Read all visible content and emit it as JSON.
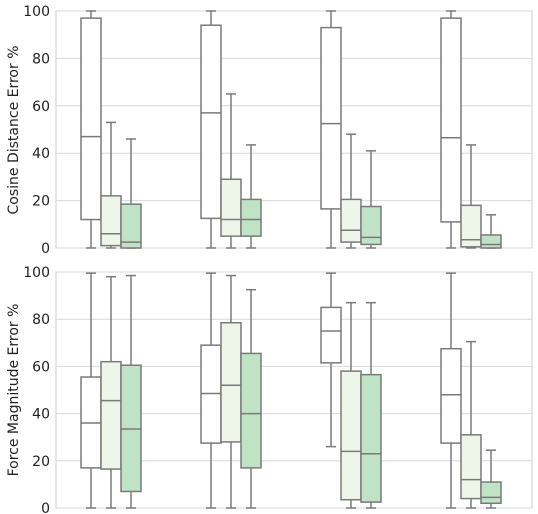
{
  "chart_data": [
    {
      "type": "boxplot",
      "ylabel": "Cosine Distance Error %",
      "ylim": [
        0,
        100
      ],
      "yticks": [
        0,
        20,
        40,
        60,
        80,
        100
      ],
      "grid": "horizontal",
      "groups": [
        {
          "boxes": [
            {
              "whislo": 0,
              "q1": 12,
              "med": 47,
              "q3": 97,
              "whishi": 100
            },
            {
              "whislo": 0,
              "q1": 1,
              "med": 6,
              "q3": 22,
              "whishi": 53
            },
            {
              "whislo": 0,
              "q1": 0,
              "med": 2.5,
              "q3": 18.5,
              "whishi": 46
            }
          ]
        },
        {
          "boxes": [
            {
              "whislo": 0,
              "q1": 12.5,
              "med": 57,
              "q3": 94,
              "whishi": 100
            },
            {
              "whislo": 0,
              "q1": 5,
              "med": 12,
              "q3": 29,
              "whishi": 65
            },
            {
              "whislo": 0,
              "q1": 5,
              "med": 12,
              "q3": 20.5,
              "whishi": 43.5
            }
          ]
        },
        {
          "boxes": [
            {
              "whislo": 0,
              "q1": 16.5,
              "med": 52.5,
              "q3": 93,
              "whishi": 100
            },
            {
              "whislo": 0,
              "q1": 2.5,
              "med": 7.5,
              "q3": 20.5,
              "whishi": 48
            },
            {
              "whislo": 0,
              "q1": 1.5,
              "med": 4.5,
              "q3": 17.5,
              "whishi": 41
            }
          ]
        },
        {
          "boxes": [
            {
              "whislo": 0,
              "q1": 11,
              "med": 46.5,
              "q3": 97,
              "whishi": 100
            },
            {
              "whislo": 0,
              "q1": 0.5,
              "med": 3.5,
              "q3": 18,
              "whishi": 43.5
            },
            {
              "whislo": 0,
              "q1": 0,
              "med": 1.5,
              "q3": 5.5,
              "whishi": 14
            }
          ]
        }
      ]
    },
    {
      "type": "boxplot",
      "ylabel": "Force Magnitude Error %",
      "ylim": [
        0,
        100
      ],
      "yticks": [
        0,
        20,
        40,
        60,
        80,
        100
      ],
      "grid": "horizontal",
      "groups": [
        {
          "boxes": [
            {
              "whislo": 0,
              "q1": 17,
              "med": 36,
              "q3": 55.5,
              "whishi": 99.5
            },
            {
              "whislo": 0,
              "q1": 16.5,
              "med": 45.5,
              "q3": 62,
              "whishi": 98
            },
            {
              "whislo": 0,
              "q1": 7,
              "med": 33.5,
              "q3": 60.5,
              "whishi": 98.5
            }
          ]
        },
        {
          "boxes": [
            {
              "whislo": 0,
              "q1": 27.5,
              "med": 48.5,
              "q3": 69,
              "whishi": 99.5
            },
            {
              "whislo": 0,
              "q1": 28,
              "med": 52,
              "q3": 78.5,
              "whishi": 98.5
            },
            {
              "whislo": 0,
              "q1": 17,
              "med": 40,
              "q3": 65.5,
              "whishi": 92.5
            }
          ]
        },
        {
          "boxes": [
            {
              "whislo": 26,
              "q1": 61.5,
              "med": 75,
              "q3": 85,
              "whishi": 99.5
            },
            {
              "whislo": 0,
              "q1": 3.5,
              "med": 24,
              "q3": 58,
              "whishi": 87
            },
            {
              "whislo": 0,
              "q1": 2.5,
              "med": 23,
              "q3": 56.5,
              "whishi": 87
            }
          ]
        },
        {
          "boxes": [
            {
              "whislo": 0,
              "q1": 27.5,
              "med": 48,
              "q3": 67.5,
              "whishi": 99.5
            },
            {
              "whislo": 0,
              "q1": 4,
              "med": 12,
              "q3": 31,
              "whishi": 70.5
            },
            {
              "whislo": 0,
              "q1": 2,
              "med": 4.5,
              "q3": 11,
              "whishi": 24.5
            }
          ]
        }
      ]
    }
  ],
  "colors": {
    "box_fills": [
      "#ffffff",
      "#edf6e9",
      "#bfe3c4"
    ],
    "box_edge": "#7a7a7a",
    "grid": "#d9d9d9",
    "axes_edge": "#cccccc",
    "text": "#222222"
  }
}
